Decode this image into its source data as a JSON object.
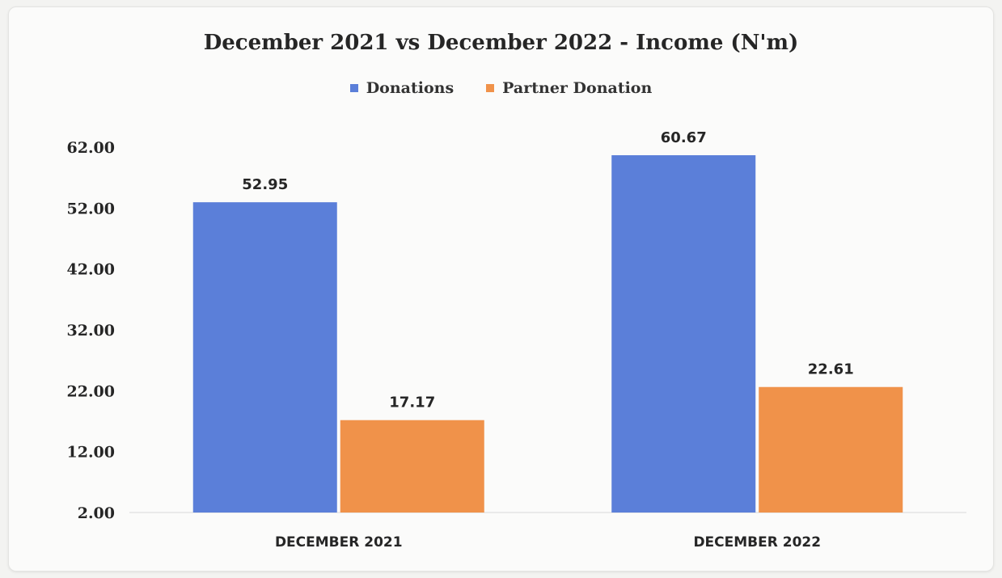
{
  "chart_data": {
    "type": "bar",
    "title": "December 2021 vs December 2022 - Income (N'm)",
    "categories": [
      "DECEMBER 2021",
      "DECEMBER 2022"
    ],
    "series": [
      {
        "name": "Donations",
        "color": "#5b7fd9",
        "values": [
          52.95,
          60.67
        ],
        "labels": [
          "52.95",
          "60.67"
        ]
      },
      {
        "name": "Partner Donation",
        "color": "#f0924a",
        "values": [
          17.17,
          22.61
        ],
        "labels": [
          "17.17",
          "22.61"
        ]
      }
    ],
    "ylim": [
      2,
      62
    ],
    "yticks": [
      "2.00",
      "12.00",
      "22.00",
      "32.00",
      "42.00",
      "52.00",
      "62.00"
    ],
    "legend_position": "top",
    "grid": false
  }
}
